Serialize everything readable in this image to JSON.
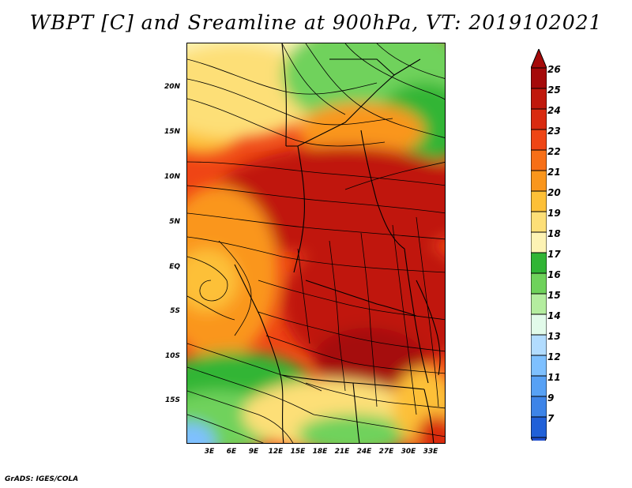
{
  "title": "WBPT [C] and Sreamline at 900hPa, VT: 2019102021",
  "footer": "GrADS: IGES/COLA",
  "map": {
    "region": "Central / Southern Africa",
    "lat_range": [
      -20,
      24
    ],
    "lon_range": [
      0,
      35
    ],
    "lat_labels": [
      {
        "value": 20,
        "label": "20N"
      },
      {
        "value": 15,
        "label": "15N"
      },
      {
        "value": 10,
        "label": "10N"
      },
      {
        "value": 5,
        "label": "5N"
      },
      {
        "value": 0,
        "label": "EQ"
      },
      {
        "value": -5,
        "label": "5S"
      },
      {
        "value": -10,
        "label": "10S"
      },
      {
        "value": -15,
        "label": "15S"
      }
    ],
    "lon_labels": [
      {
        "value": 3,
        "label": "3E"
      },
      {
        "value": 6,
        "label": "6E"
      },
      {
        "value": 9,
        "label": "9E"
      },
      {
        "value": 12,
        "label": "12E"
      },
      {
        "value": 15,
        "label": "15E"
      },
      {
        "value": 18,
        "label": "18E"
      },
      {
        "value": 21,
        "label": "21E"
      },
      {
        "value": 24,
        "label": "24E"
      },
      {
        "value": 27,
        "label": "27E"
      },
      {
        "value": 30,
        "label": "30E"
      },
      {
        "value": 33,
        "label": "33E"
      }
    ]
  },
  "colorbar": {
    "levels": [
      {
        "label": "26",
        "color": "#a50a0a"
      },
      {
        "label": "25",
        "color": "#c0180c"
      },
      {
        "label": "24",
        "color": "#d92a10"
      },
      {
        "label": "23",
        "color": "#ef4515"
      },
      {
        "label": "22",
        "color": "#f76f17"
      },
      {
        "label": "21",
        "color": "#fa961c"
      },
      {
        "label": "20",
        "color": "#fdc037"
      },
      {
        "label": "19",
        "color": "#fddf77"
      },
      {
        "label": "18",
        "color": "#fdf3b4"
      },
      {
        "label": "17",
        "color": "#31b535"
      },
      {
        "label": "16",
        "color": "#6fd25b"
      },
      {
        "label": "15",
        "color": "#b4ed9f"
      },
      {
        "label": "14",
        "color": "#e2fbea"
      },
      {
        "label": "13",
        "color": "#b2dcff"
      },
      {
        "label": "12",
        "color": "#7ec0ff"
      },
      {
        "label": "11",
        "color": "#57a1f5"
      },
      {
        "label": "9",
        "color": "#3d84e8"
      },
      {
        "label": "7",
        "color": "#2060d8"
      }
    ],
    "bottom_color": "#1f4fd0"
  }
}
